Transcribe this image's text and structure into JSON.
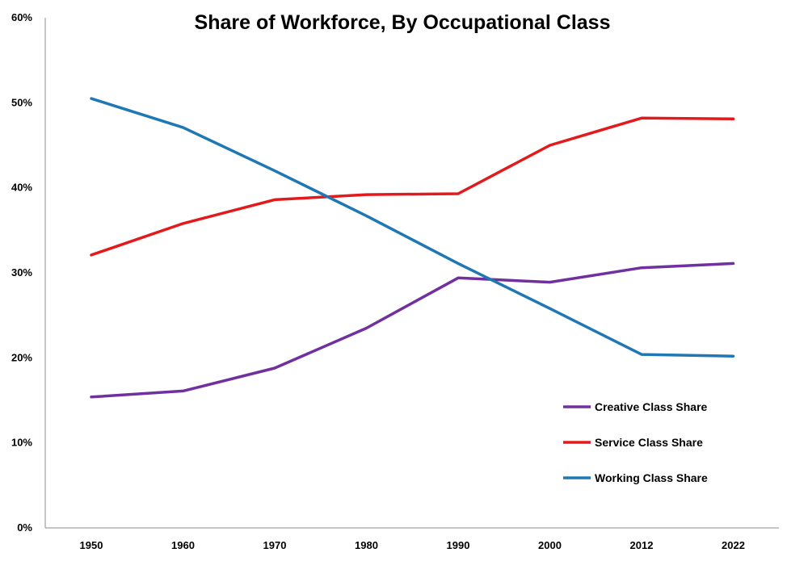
{
  "chart_data": {
    "type": "line",
    "title": "Share of Workforce, By Occupational Class",
    "xlabel": "",
    "ylabel": "",
    "categories": [
      "1950",
      "1960",
      "1970",
      "1980",
      "1990",
      "2000",
      "2012",
      "2022"
    ],
    "ylim": [
      0,
      60
    ],
    "yticks": [
      "0%",
      "10%",
      "20%",
      "30%",
      "40%",
      "50%",
      "60%"
    ],
    "grid": false,
    "legend_position": "bottom-right",
    "series": [
      {
        "name": "Creative Class Share",
        "color": "#7030a0",
        "values": [
          15.4,
          16.1,
          18.8,
          23.5,
          29.4,
          28.9,
          30.6,
          31.1
        ]
      },
      {
        "name": "Service Class Share",
        "color": "#e31a1c",
        "values": [
          32.1,
          35.8,
          38.6,
          39.2,
          39.3,
          45.0,
          48.2,
          48.1
        ]
      },
      {
        "name": "Working Class Share",
        "color": "#1f78b4",
        "values": [
          50.5,
          47.1,
          42.0,
          36.7,
          31.1,
          25.8,
          20.4,
          20.2
        ]
      }
    ]
  }
}
